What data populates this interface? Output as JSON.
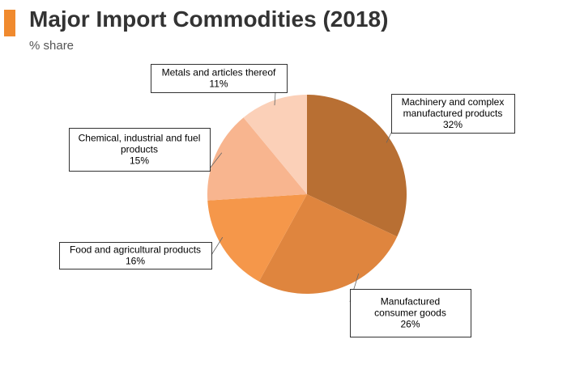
{
  "header": {
    "title": "Major Import Commodities (2018)",
    "subtitle": "% share"
  },
  "colors": {
    "accent": "#f08a2e",
    "label_border": "#000000",
    "leader_line": "#666666"
  },
  "chart_data": {
    "type": "pie",
    "title": "Major Import Commodities (2018)",
    "subtitle": "% share",
    "unit": "%",
    "legend": "none",
    "slices": [
      {
        "label_lines": [
          "Machinery and complex",
          "manufactured products"
        ],
        "value": 32,
        "value_label": "32%",
        "color": "#b86f33"
      },
      {
        "label_lines": [
          "Manufactured",
          "consumer goods"
        ],
        "value": 26,
        "value_label": "26%",
        "color": "#df853e"
      },
      {
        "label_lines": [
          "Food and agricultural products"
        ],
        "value": 16,
        "value_label": "16%",
        "color": "#f5974a"
      },
      {
        "label_lines": [
          "Chemical, industrial and fuel",
          "products"
        ],
        "value": 15,
        "value_label": "15%",
        "color": "#f8b58f"
      },
      {
        "label_lines": [
          "Metals and articles thereof"
        ],
        "value": 11,
        "value_label": "11%",
        "color": "#fbd0b8"
      }
    ]
  }
}
